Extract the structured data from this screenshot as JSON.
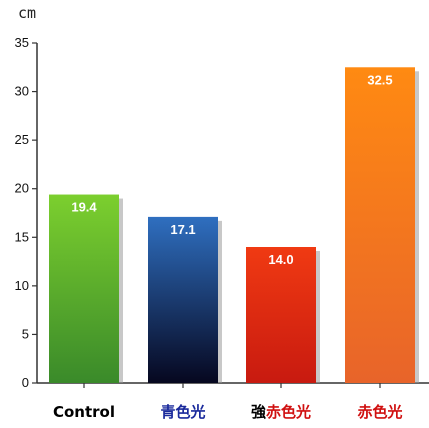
{
  "chart_data": {
    "type": "bar",
    "title": "",
    "xlabel": "",
    "ylabel": "",
    "unit_label": "cm",
    "ylim": [
      0,
      35
    ],
    "yticks": [
      0,
      5,
      10,
      15,
      20,
      25,
      30,
      35
    ],
    "grid": false,
    "legend": "none",
    "categories": [
      "Control",
      "青色光",
      "強赤色光",
      "赤色光"
    ],
    "values": [
      19.4,
      17.1,
      14.0,
      32.5
    ],
    "value_labels": [
      "19.4",
      "17.1",
      "14.0",
      "32.5"
    ],
    "category_label_parts": [
      [
        {
          "text": "Control",
          "color": "#000000"
        }
      ],
      [
        {
          "text": "青色光",
          "color": "#1a2a9c"
        }
      ],
      [
        {
          "text": "強",
          "color": "#000000"
        },
        {
          "text": "赤色光",
          "color": "#d01010"
        }
      ],
      [
        {
          "text": "赤色光",
          "color": "#d01010"
        }
      ]
    ],
    "bar_colors": [
      {
        "top": "#7ccf2e",
        "bottom": "#3a8a2a"
      },
      {
        "top": "#2f6fc0",
        "bottom": "#06071f"
      },
      {
        "top": "#f03a12",
        "bottom": "#c81a10"
      },
      {
        "top": "#ff8a12",
        "bottom": "#e8642a"
      }
    ]
  }
}
